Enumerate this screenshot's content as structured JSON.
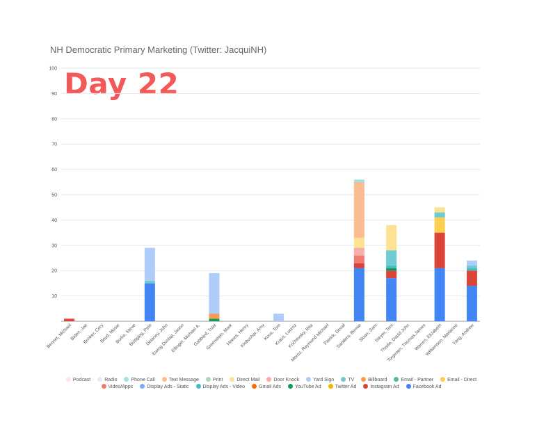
{
  "chart_data": {
    "type": "bar",
    "stacked": true,
    "title": "NH Democratic Primary Marketing (Twitter: JacquiNH)",
    "overlay_label": "Day 22",
    "xlabel": "",
    "ylabel": "",
    "ylim": [
      0,
      100
    ],
    "yticks": [
      "10",
      "20",
      "30",
      "40",
      "50",
      "60",
      "70",
      "80",
      "90",
      "100"
    ],
    "grid": true,
    "legend_position": "bottom",
    "categories": [
      "Bennet, Michael",
      "Biden, Joe",
      "Booker, Cory",
      "Boyd, Mosie",
      "Burke, Steve",
      "Buttigieg, Pete",
      "Delaney, John",
      "Ewing Dunlap, Jason",
      "Ellinger, Michael A.",
      "Gabbard, Tulsi",
      "Greenstein, Mark",
      "Hewes, Henry",
      "Klobuchar, Amy",
      "Koos, Tom",
      "Kraus, Lorenz",
      "Krichevsky, Rita",
      "Moroz, Raymond Michael",
      "Patrick, Deval",
      "Sanders, Bernie",
      "Sloan, Sam",
      "Steyer, Tom",
      "Thistle, David John",
      "Torgesen, Thomas James",
      "Warren, Elizabeth",
      "Williamson, Marianne",
      "Yang, Andrew"
    ],
    "series": [
      {
        "name": "Facebook Ad",
        "color": "#4285f4",
        "values": [
          0,
          0,
          0,
          0,
          0,
          15,
          0,
          0,
          0,
          0,
          0,
          0,
          0,
          0,
          0,
          0,
          0,
          0,
          21,
          0,
          17,
          0,
          0,
          21,
          0,
          14
        ]
      },
      {
        "name": "Instagram Ad",
        "color": "#db4437",
        "values": [
          1,
          0,
          0,
          0,
          0,
          0,
          0,
          0,
          0,
          0,
          0,
          0,
          0,
          0,
          0,
          0,
          0,
          0,
          2,
          0,
          3,
          0,
          0,
          14,
          0,
          6
        ]
      },
      {
        "name": "Twitter Ad",
        "color": "#f4b400",
        "values": [
          0,
          0,
          0,
          0,
          0,
          0,
          0,
          0,
          0,
          0,
          0,
          0,
          0,
          0,
          0,
          0,
          0,
          0,
          0,
          0,
          0,
          0,
          0,
          0,
          0,
          0
        ]
      },
      {
        "name": "YouTube Ad",
        "color": "#0f9d58",
        "values": [
          0,
          0,
          0,
          0,
          0,
          0,
          0,
          0,
          0,
          1,
          0,
          0,
          0,
          0,
          0,
          0,
          0,
          0,
          0,
          0,
          1,
          0,
          0,
          0,
          0,
          0
        ]
      },
      {
        "name": "Gmail Ads",
        "color": "#ff6d01",
        "values": [
          0,
          0,
          0,
          0,
          0,
          0,
          0,
          0,
          0,
          0,
          0,
          0,
          0,
          0,
          0,
          0,
          0,
          0,
          0,
          0,
          0,
          0,
          0,
          0,
          0,
          0
        ]
      },
      {
        "name": "Display Ads - Video",
        "color": "#46bdc6",
        "values": [
          0,
          0,
          0,
          0,
          0,
          0,
          0,
          0,
          0,
          0,
          0,
          0,
          0,
          0,
          0,
          0,
          0,
          0,
          0,
          0,
          1,
          0,
          0,
          0,
          0,
          1
        ]
      },
      {
        "name": "Display Ads - Static",
        "color": "#7baaf7",
        "values": [
          0,
          0,
          0,
          0,
          0,
          0,
          0,
          0,
          0,
          0,
          0,
          0,
          0,
          0,
          0,
          0,
          0,
          0,
          0,
          0,
          0,
          0,
          0,
          0,
          0,
          0
        ]
      },
      {
        "name": "Video/Apps",
        "color": "#f07b72",
        "values": [
          0,
          0,
          0,
          0,
          0,
          0,
          0,
          0,
          0,
          0,
          0,
          0,
          0,
          0,
          0,
          0,
          0,
          0,
          3,
          0,
          0,
          0,
          0,
          0,
          0,
          0
        ]
      },
      {
        "name": "Email - Direct",
        "color": "#fcd04f",
        "values": [
          0,
          0,
          0,
          0,
          0,
          0,
          0,
          0,
          0,
          0,
          0,
          0,
          0,
          0,
          0,
          0,
          0,
          0,
          0,
          0,
          0,
          0,
          0,
          6,
          0,
          0
        ]
      },
      {
        "name": "Email - Partner",
        "color": "#57bb8a",
        "values": [
          0,
          0,
          0,
          0,
          0,
          0,
          0,
          0,
          0,
          0,
          0,
          0,
          0,
          0,
          0,
          0,
          0,
          0,
          0,
          0,
          0,
          0,
          0,
          0,
          0,
          0
        ]
      },
      {
        "name": "Billboard",
        "color": "#f39c4f",
        "values": [
          0,
          0,
          0,
          0,
          0,
          0,
          0,
          0,
          0,
          2,
          0,
          0,
          0,
          0,
          0,
          0,
          0,
          0,
          0,
          0,
          0,
          0,
          0,
          0,
          0,
          0
        ]
      },
      {
        "name": "TV",
        "color": "#71c9d1",
        "values": [
          0,
          0,
          0,
          0,
          0,
          1,
          0,
          0,
          0,
          0,
          0,
          0,
          0,
          0,
          0,
          0,
          0,
          0,
          0,
          0,
          6,
          0,
          0,
          2,
          0,
          1
        ]
      },
      {
        "name": "Yard Sign",
        "color": "#aecbfa",
        "values": [
          0,
          0,
          0,
          0,
          0,
          13,
          0,
          0,
          0,
          16,
          0,
          0,
          0,
          3,
          0,
          0,
          0,
          0,
          0,
          0,
          0,
          0,
          0,
          0,
          0,
          2
        ]
      },
      {
        "name": "Door Knock",
        "color": "#f6aea9",
        "values": [
          0,
          0,
          0,
          0,
          0,
          0,
          0,
          0,
          0,
          0,
          0,
          0,
          0,
          0,
          0,
          0,
          0,
          0,
          3,
          0,
          0,
          0,
          0,
          0,
          0,
          0
        ]
      },
      {
        "name": "Direct Mail",
        "color": "#fde293",
        "values": [
          0,
          0,
          0,
          0,
          0,
          0,
          0,
          0,
          0,
          0,
          0,
          0,
          0,
          0,
          0,
          0,
          0,
          0,
          4,
          0,
          10,
          0,
          0,
          2,
          0,
          0
        ]
      },
      {
        "name": "Print",
        "color": "#a8dab5",
        "values": [
          0,
          0,
          0,
          0,
          0,
          0,
          0,
          0,
          0,
          0,
          0,
          0,
          0,
          0,
          0,
          0,
          0,
          0,
          0,
          0,
          0,
          0,
          0,
          0,
          0,
          0
        ]
      },
      {
        "name": "Text Message",
        "color": "#fbbc92",
        "values": [
          0,
          0,
          0,
          0,
          0,
          0,
          0,
          0,
          0,
          0,
          0,
          0,
          0,
          0,
          0,
          0,
          0,
          0,
          22,
          0,
          0,
          0,
          0,
          0,
          0,
          0
        ]
      },
      {
        "name": "Phone Call",
        "color": "#a1e0e5",
        "values": [
          0,
          0,
          0,
          0,
          0,
          0,
          0,
          0,
          0,
          0,
          0,
          0,
          0,
          0,
          0,
          0,
          0,
          0,
          1,
          0,
          0,
          0,
          0,
          0,
          0,
          0
        ]
      },
      {
        "name": "Radio",
        "color": "#e8eaf6",
        "values": [
          0,
          0,
          0,
          0,
          0,
          0,
          0,
          0,
          0,
          0,
          0,
          0,
          0,
          0,
          0,
          0,
          0,
          0,
          0,
          0,
          0,
          0,
          0,
          0,
          0,
          0
        ]
      },
      {
        "name": "Podcast",
        "color": "#fce4ec",
        "values": [
          0,
          0,
          0,
          0,
          0,
          0,
          0,
          0,
          0,
          0,
          0,
          0,
          0,
          0,
          0,
          0,
          0,
          0,
          0,
          0,
          0,
          0,
          0,
          0,
          0,
          0
        ]
      }
    ],
    "legend_rows": [
      [
        "Podcast",
        "Radio",
        "Phone Call",
        "Text Message",
        "Print",
        "Direct Mail",
        "Door Knock",
        "Yard Sign",
        "TV",
        "Billboard",
        "Email - Partner",
        "Email - Direct"
      ],
      [
        "Video/Apps",
        "Display Ads - Static",
        "Display Ads - Video",
        "Gmail Ads",
        "YouTube Ad",
        "Twitter Ad",
        "Instagram Ad",
        "Facebook Ad"
      ]
    ]
  }
}
